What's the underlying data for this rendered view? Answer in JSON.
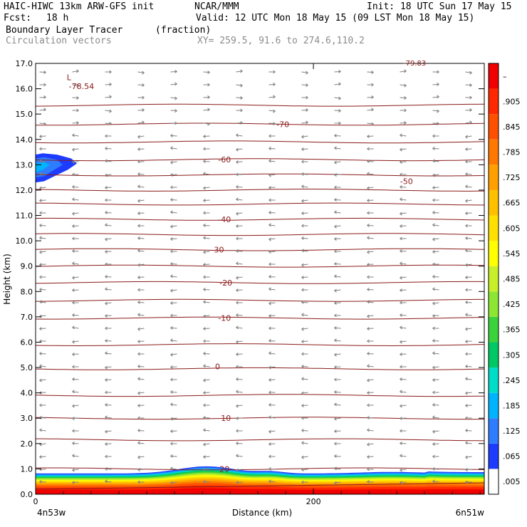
{
  "header": {
    "model_line": "HAIC-HIWC 13km ARW-GFS init",
    "org": "NCAR/MMM",
    "init": "Init: 18 UTC Sun 17 May 15",
    "fcst_label": "Fcst:",
    "fcst_value": "18 h",
    "valid": "Valid: 12 UTC Mon 18 May 15 (09 LST Mon 18 May 15)",
    "field": "Boundary Layer Tracer",
    "units": "(fraction)",
    "vectors": "Circulation vectors",
    "xy": "XY= 259.5, 91.6 to 274.6,110.2"
  },
  "colors": {
    "isotherm": "#8b1a1a",
    "vector": "#808080",
    "bl_fill": [
      "#ffffff",
      "#1e3cff",
      "#2e7dff",
      "#00b4ff",
      "#00dcc8",
      "#00c864",
      "#3cd23c",
      "#8ce632",
      "#c8f028",
      "#ffff00",
      "#ffe000",
      "#ffc000",
      "#ffa000",
      "#ff7800",
      "#ff5000",
      "#ff2800",
      "#f00000"
    ]
  },
  "chart_data": {
    "type": "contour-cross-section",
    "ylabel": "Height (km)",
    "xlabel": "Distance (km)",
    "x_ticks": [
      0,
      200
    ],
    "x_end_labels": {
      "left": "4n53w",
      "right": "6n51w"
    },
    "xlim": [
      0,
      323
    ],
    "ylim": [
      0,
      17
    ],
    "y_ticks": [
      "0.0",
      "1.0",
      "2.0",
      "3.0",
      "4.0",
      "5.0",
      "6.0",
      "7.0",
      "8.0",
      "9.0",
      "10.0",
      "11.0",
      "12.0",
      "13.0",
      "14.0",
      "15.0",
      "16.0",
      "17.0"
    ],
    "colorbar": {
      "labels": [
        ".005",
        ".065",
        ".125",
        ".185",
        ".245",
        ".305",
        ".365",
        ".425",
        ".485",
        ".545",
        ".605",
        ".665",
        ".725",
        ".785",
        ".845",
        ".905",
        "–"
      ]
    },
    "isotherm_labels": [
      {
        "text": "20",
        "x": 136,
        "y": 1.0
      },
      {
        "text": "10",
        "x": 137,
        "y": 3.0
      },
      {
        "text": "0",
        "x": 131,
        "y": 5.05
      },
      {
        "text": "-10",
        "x": 136,
        "y": 6.95
      },
      {
        "text": "-20",
        "x": 137,
        "y": 8.35
      },
      {
        "text": "-30",
        "x": 131,
        "y": 9.65
      },
      {
        "text": "-40",
        "x": 136,
        "y": 10.85
      },
      {
        "text": "-50",
        "x": 267,
        "y": 12.35
      },
      {
        "text": "-60",
        "x": 136,
        "y": 13.2
      },
      {
        "text": "-70",
        "x": 178,
        "y": 14.6
      },
      {
        "text": "-78.54",
        "x": 33,
        "y": 16.1
      }
    ],
    "low_marker": {
      "text": "L",
      "x": 24,
      "y": 16.45
    },
    "top_partial_label": "-79.83",
    "isotherm_heights": [
      0.55,
      1.0,
      2.15,
      3.0,
      3.9,
      4.95,
      5.9,
      6.95,
      7.65,
      8.35,
      9.0,
      9.65,
      10.25,
      10.85,
      11.45,
      12.0,
      12.6,
      13.2,
      13.9,
      14.6,
      15.35
    ]
  }
}
